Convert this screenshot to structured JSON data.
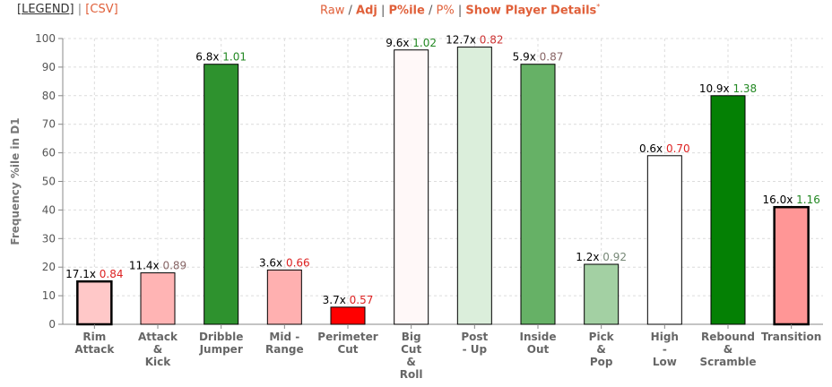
{
  "topbar": {
    "legend_label": "[LEGEND]",
    "csv_label": "[CSV]",
    "sep1": "|",
    "raw": "Raw",
    "slash1": "/",
    "adj": "Adj",
    "sep2": "|",
    "pctile": "P%ile",
    "slash2": "/",
    "pct": "P%",
    "sep3": "|",
    "details": "Show Player Details",
    "asterisk": "*"
  },
  "chart_data": {
    "type": "bar",
    "ylabel": "Frequency %ile in D1",
    "ylim": [
      0,
      100
    ],
    "yticks": [
      0,
      10,
      20,
      30,
      40,
      50,
      60,
      70,
      80,
      90,
      100
    ],
    "grid": true,
    "categories": [
      [
        "Rim",
        "Attack"
      ],
      [
        "Attack",
        "&",
        "Kick"
      ],
      [
        "Dribble",
        "Jumper"
      ],
      [
        "Mid -",
        "Range"
      ],
      [
        "Perimeter",
        "Cut"
      ],
      [
        "Big",
        "Cut",
        "&",
        "Roll"
      ],
      [
        "Post",
        "- Up"
      ],
      [
        "Inside",
        "Out"
      ],
      [
        "Pick",
        "&",
        "Pop"
      ],
      [
        "High",
        "-",
        "Low"
      ],
      [
        "Rebound",
        "&",
        "Scramble"
      ],
      [
        "Transition"
      ]
    ],
    "values": [
      15,
      18,
      91,
      19,
      6,
      96,
      97,
      91,
      21,
      59,
      80,
      41
    ],
    "freq_labels": [
      "17.1x",
      "11.4x",
      "6.8x",
      "3.6x",
      "3.7x",
      "9.6x",
      "12.7x",
      "5.9x",
      "1.2x",
      "0.6x",
      "10.9x",
      "16.0x"
    ],
    "ppp_labels": [
      "0.84",
      "0.89",
      "1.01",
      "0.66",
      "0.57",
      "1.02",
      "0.82",
      "0.87",
      "0.92",
      "0.70",
      "1.38",
      "1.16"
    ],
    "ppp_colors": [
      "#dd2222",
      "#886666",
      "#228822",
      "#dd2222",
      "#dd2222",
      "#228822",
      "#cc3333",
      "#886666",
      "#778877",
      "#dd2222",
      "#228822",
      "#228822"
    ],
    "fill_colors": [
      "#ffc8c8",
      "#ffb4b4",
      "#2e922e",
      "#ffb0b0",
      "#ff0000",
      "#fff8f8",
      "#dbeedb",
      "#66b166",
      "#a3d0a3",
      "#ffffff",
      "#048004",
      "#ff9696"
    ],
    "thick_border": [
      true,
      false,
      false,
      false,
      false,
      false,
      false,
      false,
      false,
      false,
      false,
      true
    ]
  }
}
